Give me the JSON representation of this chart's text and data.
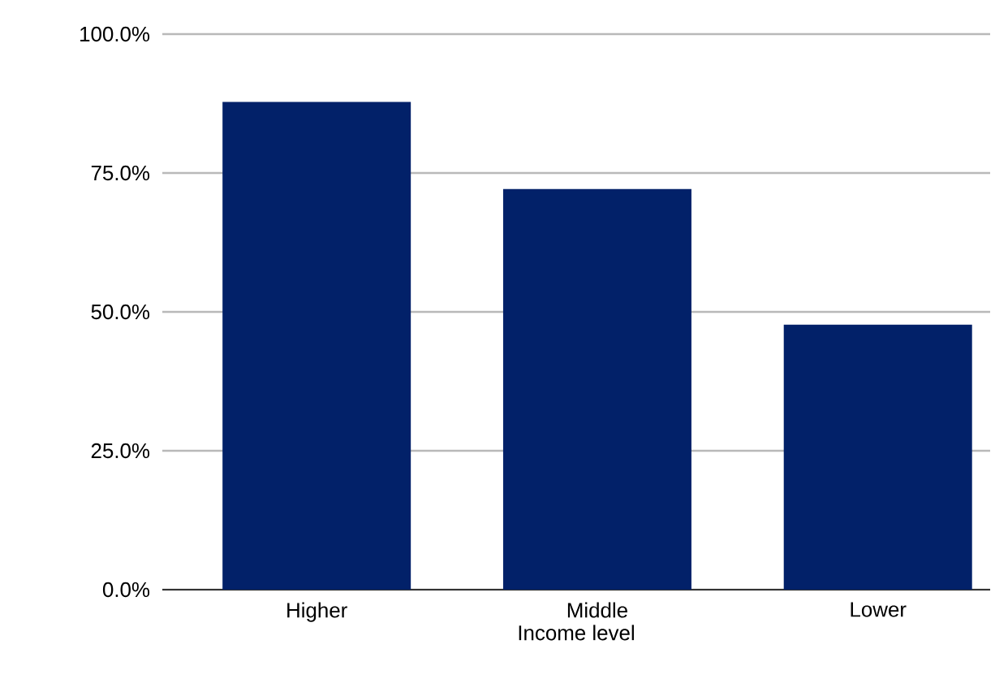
{
  "chart_data": {
    "type": "bar",
    "xlabel": "Income level",
    "categories": [
      "Higher",
      "Middle",
      "Lower"
    ],
    "values": [
      87.8,
      72.1,
      47.7
    ],
    "color": "#022169",
    "ylim": [
      0,
      100
    ],
    "yticks": [
      {
        "value": 0,
        "label": "0.0%"
      },
      {
        "value": 25,
        "label": "25.0%"
      },
      {
        "value": 50,
        "label": "50.0%"
      },
      {
        "value": 75,
        "label": "75.0%"
      },
      {
        "value": 100,
        "label": "100.0%"
      }
    ],
    "grid": "y"
  }
}
